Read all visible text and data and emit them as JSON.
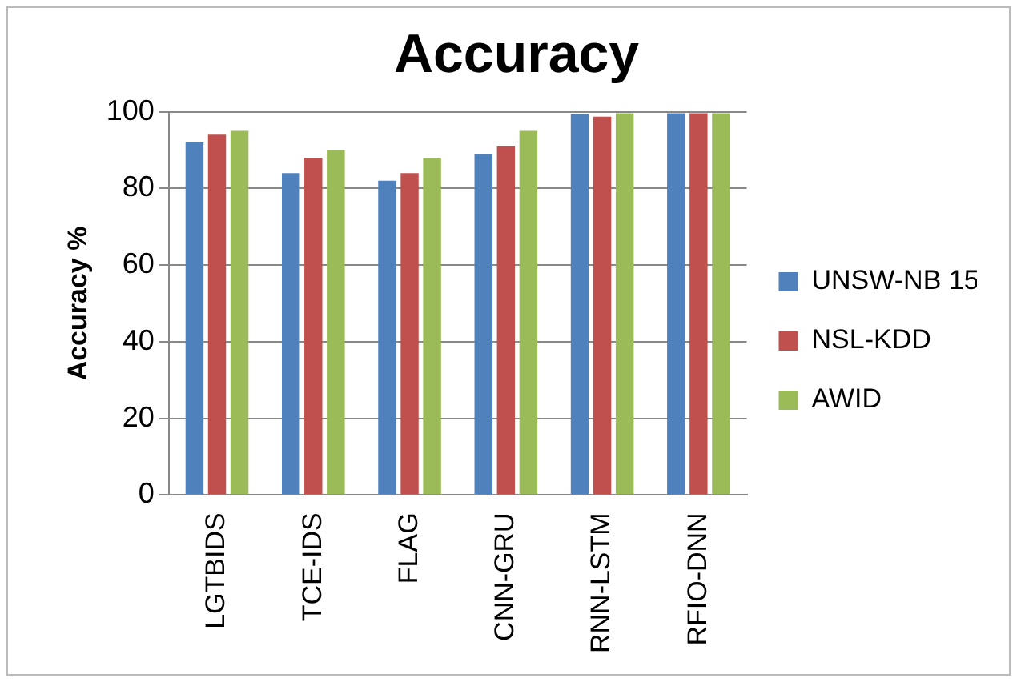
{
  "chart_data": {
    "type": "bar",
    "title": "Accuracy",
    "ylabel": "Accuracy %",
    "categories": [
      "LGTBIDS",
      "TCE-IDS",
      "FLAG",
      "CNN-GRU",
      "RNN-LSTM",
      "RFIO-DNN"
    ],
    "series": [
      {
        "name": "UNSW-NB 15",
        "color": "#4f81bd",
        "values": [
          92,
          84,
          82,
          89,
          99.4,
          99.6
        ]
      },
      {
        "name": "NSL-KDD",
        "color": "#c0504d",
        "values": [
          94,
          88,
          84,
          91,
          98.7,
          99.6
        ]
      },
      {
        "name": "AWID",
        "color": "#9bbb59",
        "values": [
          95,
          90,
          88,
          95,
          99.6,
          99.6
        ]
      }
    ],
    "ylim": [
      0,
      100
    ],
    "yticks": [
      0,
      20,
      40,
      60,
      80,
      100
    ],
    "grid": "y",
    "legend": "right"
  }
}
